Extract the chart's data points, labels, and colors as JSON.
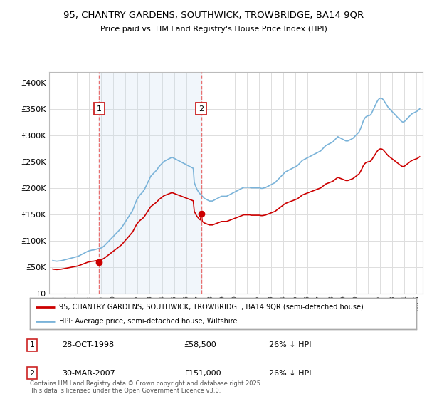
{
  "title": "95, CHANTRY GARDENS, SOUTHWICK, TROWBRIDGE, BA14 9QR",
  "subtitle": "Price paid vs. HM Land Registry's House Price Index (HPI)",
  "legend_line1": "95, CHANTRY GARDENS, SOUTHWICK, TROWBRIDGE, BA14 9QR (semi-detached house)",
  "legend_line2": "HPI: Average price, semi-detached house, Wiltshire",
  "footer": "Contains HM Land Registry data © Crown copyright and database right 2025.\nThis data is licensed under the Open Government Licence v3.0.",
  "sale1_date": "28-OCT-1998",
  "sale1_price": "£58,500",
  "sale1_hpi": "26% ↓ HPI",
  "sale1_year": 1998.83,
  "sale1_value": 58500,
  "sale2_date": "30-MAR-2007",
  "sale2_price": "£151,000",
  "sale2_hpi": "26% ↓ HPI",
  "sale2_year": 2007.25,
  "sale2_value": 151000,
  "red_color": "#cc0000",
  "blue_color": "#7ab3d9",
  "blue_fill_color": "#c8dff0",
  "background_color": "#ffffff",
  "grid_color": "#dddddd",
  "vline_color": "#e87070",
  "ylim": [
    0,
    420000
  ],
  "yticks": [
    0,
    50000,
    100000,
    150000,
    200000,
    250000,
    300000,
    350000,
    400000
  ],
  "xlim_start": 1994.7,
  "xlim_end": 2025.5,
  "hpi_years": [
    1995,
    1995.083,
    1995.167,
    1995.25,
    1995.333,
    1995.417,
    1995.5,
    1995.583,
    1995.667,
    1995.75,
    1995.833,
    1995.917,
    1996,
    1996.083,
    1996.167,
    1996.25,
    1996.333,
    1996.417,
    1996.5,
    1996.583,
    1996.667,
    1996.75,
    1996.833,
    1996.917,
    1997,
    1997.083,
    1997.167,
    1997.25,
    1997.333,
    1997.417,
    1997.5,
    1997.583,
    1997.667,
    1997.75,
    1997.833,
    1997.917,
    1998,
    1998.083,
    1998.167,
    1998.25,
    1998.333,
    1998.417,
    1998.5,
    1998.583,
    1998.667,
    1998.75,
    1998.833,
    1998.917,
    1999,
    1999.083,
    1999.167,
    1999.25,
    1999.333,
    1999.417,
    1999.5,
    1999.583,
    1999.667,
    1999.75,
    1999.833,
    1999.917,
    2000,
    2000.083,
    2000.167,
    2000.25,
    2000.333,
    2000.417,
    2000.5,
    2000.583,
    2000.667,
    2000.75,
    2000.833,
    2000.917,
    2001,
    2001.083,
    2001.167,
    2001.25,
    2001.333,
    2001.417,
    2001.5,
    2001.583,
    2001.667,
    2001.75,
    2001.833,
    2001.917,
    2002,
    2002.083,
    2002.167,
    2002.25,
    2002.333,
    2002.417,
    2002.5,
    2002.583,
    2002.667,
    2002.75,
    2002.833,
    2002.917,
    2003,
    2003.083,
    2003.167,
    2003.25,
    2003.333,
    2003.417,
    2003.5,
    2003.583,
    2003.667,
    2003.75,
    2003.833,
    2003.917,
    2004,
    2004.083,
    2004.167,
    2004.25,
    2004.333,
    2004.417,
    2004.5,
    2004.583,
    2004.667,
    2004.75,
    2004.833,
    2004.917,
    2005,
    2005.083,
    2005.167,
    2005.25,
    2005.333,
    2005.417,
    2005.5,
    2005.583,
    2005.667,
    2005.75,
    2005.833,
    2005.917,
    2006,
    2006.083,
    2006.167,
    2006.25,
    2006.333,
    2006.417,
    2006.5,
    2006.583,
    2006.667,
    2006.75,
    2006.833,
    2006.917,
    2007,
    2007.083,
    2007.167,
    2007.25,
    2007.333,
    2007.417,
    2007.5,
    2007.583,
    2007.667,
    2007.75,
    2007.833,
    2007.917,
    2008,
    2008.083,
    2008.167,
    2008.25,
    2008.333,
    2008.417,
    2008.5,
    2008.583,
    2008.667,
    2008.75,
    2008.833,
    2008.917,
    2009,
    2009.083,
    2009.167,
    2009.25,
    2009.333,
    2009.417,
    2009.5,
    2009.583,
    2009.667,
    2009.75,
    2009.833,
    2009.917,
    2010,
    2010.083,
    2010.167,
    2010.25,
    2010.333,
    2010.417,
    2010.5,
    2010.583,
    2010.667,
    2010.75,
    2010.833,
    2010.917,
    2011,
    2011.083,
    2011.167,
    2011.25,
    2011.333,
    2011.417,
    2011.5,
    2011.583,
    2011.667,
    2011.75,
    2011.833,
    2011.917,
    2012,
    2012.083,
    2012.167,
    2012.25,
    2012.333,
    2012.417,
    2012.5,
    2012.583,
    2012.667,
    2012.75,
    2012.833,
    2012.917,
    2013,
    2013.083,
    2013.167,
    2013.25,
    2013.333,
    2013.417,
    2013.5,
    2013.583,
    2013.667,
    2013.75,
    2013.833,
    2013.917,
    2014,
    2014.083,
    2014.167,
    2014.25,
    2014.333,
    2014.417,
    2014.5,
    2014.583,
    2014.667,
    2014.75,
    2014.833,
    2014.917,
    2015,
    2015.083,
    2015.167,
    2015.25,
    2015.333,
    2015.417,
    2015.5,
    2015.583,
    2015.667,
    2015.75,
    2015.833,
    2015.917,
    2016,
    2016.083,
    2016.167,
    2016.25,
    2016.333,
    2016.417,
    2016.5,
    2016.583,
    2016.667,
    2016.75,
    2016.833,
    2016.917,
    2017,
    2017.083,
    2017.167,
    2017.25,
    2017.333,
    2017.417,
    2017.5,
    2017.583,
    2017.667,
    2017.75,
    2017.833,
    2017.917,
    2018,
    2018.083,
    2018.167,
    2018.25,
    2018.333,
    2018.417,
    2018.5,
    2018.583,
    2018.667,
    2018.75,
    2018.833,
    2018.917,
    2019,
    2019.083,
    2019.167,
    2019.25,
    2019.333,
    2019.417,
    2019.5,
    2019.583,
    2019.667,
    2019.75,
    2019.833,
    2019.917,
    2020,
    2020.083,
    2020.167,
    2020.25,
    2020.333,
    2020.417,
    2020.5,
    2020.583,
    2020.667,
    2020.75,
    2020.833,
    2020.917,
    2021,
    2021.083,
    2021.167,
    2021.25,
    2021.333,
    2021.417,
    2021.5,
    2021.583,
    2021.667,
    2021.75,
    2021.833,
    2021.917,
    2022,
    2022.083,
    2022.167,
    2022.25,
    2022.333,
    2022.417,
    2022.5,
    2022.583,
    2022.667,
    2022.75,
    2022.833,
    2022.917,
    2023,
    2023.083,
    2023.167,
    2023.25,
    2023.333,
    2023.417,
    2023.5,
    2023.583,
    2023.667,
    2023.75,
    2023.833,
    2023.917,
    2024,
    2024.083,
    2024.167,
    2024.25,
    2024.333,
    2024.417,
    2024.5,
    2024.583,
    2024.667,
    2024.75,
    2024.833,
    2024.917,
    2025,
    2025.083,
    2025.167,
    2025.25
  ],
  "hpi_base": [
    62000,
    61500,
    61200,
    61000,
    60800,
    61000,
    61200,
    61400,
    61600,
    62000,
    62500,
    63000,
    63500,
    64000,
    64500,
    65000,
    65500,
    66000,
    66500,
    67000,
    67500,
    68000,
    68500,
    69000,
    69500,
    70000,
    71000,
    72000,
    73000,
    74000,
    75000,
    76000,
    77000,
    78000,
    79000,
    80000,
    80500,
    81000,
    81500,
    82000,
    82000,
    82500,
    83000,
    83500,
    84000,
    84500,
    85000,
    85500,
    86000,
    87000,
    88500,
    90000,
    92000,
    94000,
    96000,
    98000,
    100000,
    102000,
    104000,
    106000,
    108000,
    110000,
    112000,
    114000,
    116000,
    118000,
    120000,
    122000,
    124000,
    127000,
    130000,
    133000,
    136000,
    139000,
    142000,
    145000,
    148000,
    151000,
    154000,
    157000,
    162000,
    167000,
    172000,
    177000,
    180000,
    183000,
    186000,
    188000,
    190000,
    192000,
    195000,
    198000,
    202000,
    206000,
    210000,
    214000,
    218000,
    222000,
    224000,
    226000,
    228000,
    230000,
    232000,
    234000,
    237000,
    240000,
    242000,
    244000,
    246000,
    248000,
    250000,
    251000,
    252000,
    253000,
    254000,
    255000,
    256000,
    257000,
    258000,
    257000,
    256000,
    255000,
    254000,
    253000,
    252000,
    251000,
    250000,
    249000,
    248000,
    247000,
    246000,
    245000,
    244000,
    243000,
    242000,
    241000,
    240000,
    239000,
    238000,
    237000,
    210000,
    205000,
    200000,
    196000,
    193000,
    190000,
    188000,
    186000,
    184000,
    182000,
    180000,
    179000,
    178000,
    177000,
    176000,
    175000,
    175000,
    175000,
    175000,
    176000,
    177000,
    178000,
    179000,
    180000,
    181000,
    182000,
    183000,
    184000,
    184000,
    184000,
    184000,
    184000,
    184000,
    185000,
    186000,
    187000,
    188000,
    189000,
    190000,
    191000,
    192000,
    193000,
    194000,
    195000,
    196000,
    197000,
    198000,
    199000,
    200000,
    201000,
    201000,
    201000,
    201000,
    201000,
    201000,
    201000,
    200000,
    200000,
    200000,
    200000,
    200000,
    200000,
    200000,
    200000,
    200000,
    200000,
    199000,
    199000,
    199000,
    200000,
    200000,
    201000,
    202000,
    203000,
    204000,
    205000,
    206000,
    207000,
    208000,
    209000,
    210000,
    212000,
    214000,
    216000,
    218000,
    220000,
    222000,
    224000,
    226000,
    228000,
    230000,
    231000,
    232000,
    233000,
    234000,
    235000,
    236000,
    237000,
    238000,
    239000,
    240000,
    241000,
    242000,
    244000,
    246000,
    248000,
    250000,
    252000,
    253000,
    254000,
    255000,
    256000,
    257000,
    258000,
    259000,
    260000,
    261000,
    262000,
    263000,
    264000,
    265000,
    266000,
    267000,
    268000,
    269000,
    270000,
    272000,
    274000,
    276000,
    278000,
    280000,
    281000,
    282000,
    283000,
    284000,
    285000,
    286000,
    287000,
    289000,
    291000,
    293000,
    295000,
    297000,
    296000,
    295000,
    294000,
    293000,
    292000,
    291000,
    290000,
    289000,
    289000,
    289000,
    290000,
    291000,
    292000,
    293000,
    294000,
    296000,
    298000,
    300000,
    302000,
    304000,
    306000,
    310000,
    315000,
    320000,
    326000,
    330000,
    333000,
    335000,
    336000,
    337000,
    337000,
    338000,
    340000,
    344000,
    348000,
    352000,
    356000,
    360000,
    364000,
    367000,
    369000,
    370000,
    370000,
    369000,
    367000,
    364000,
    361000,
    358000,
    355000,
    352000,
    350000,
    348000,
    346000,
    344000,
    342000,
    340000,
    338000,
    336000,
    334000,
    332000,
    330000,
    328000,
    326000,
    325000,
    325000,
    326000,
    328000,
    330000,
    332000,
    334000,
    336000,
    338000,
    340000,
    341000,
    342000,
    343000,
    344000,
    345000,
    346000,
    348000,
    350000,
    352000,
    354000,
    356000,
    358000,
    360000,
    362000,
    326000,
    328000,
    330000,
    332000
  ]
}
